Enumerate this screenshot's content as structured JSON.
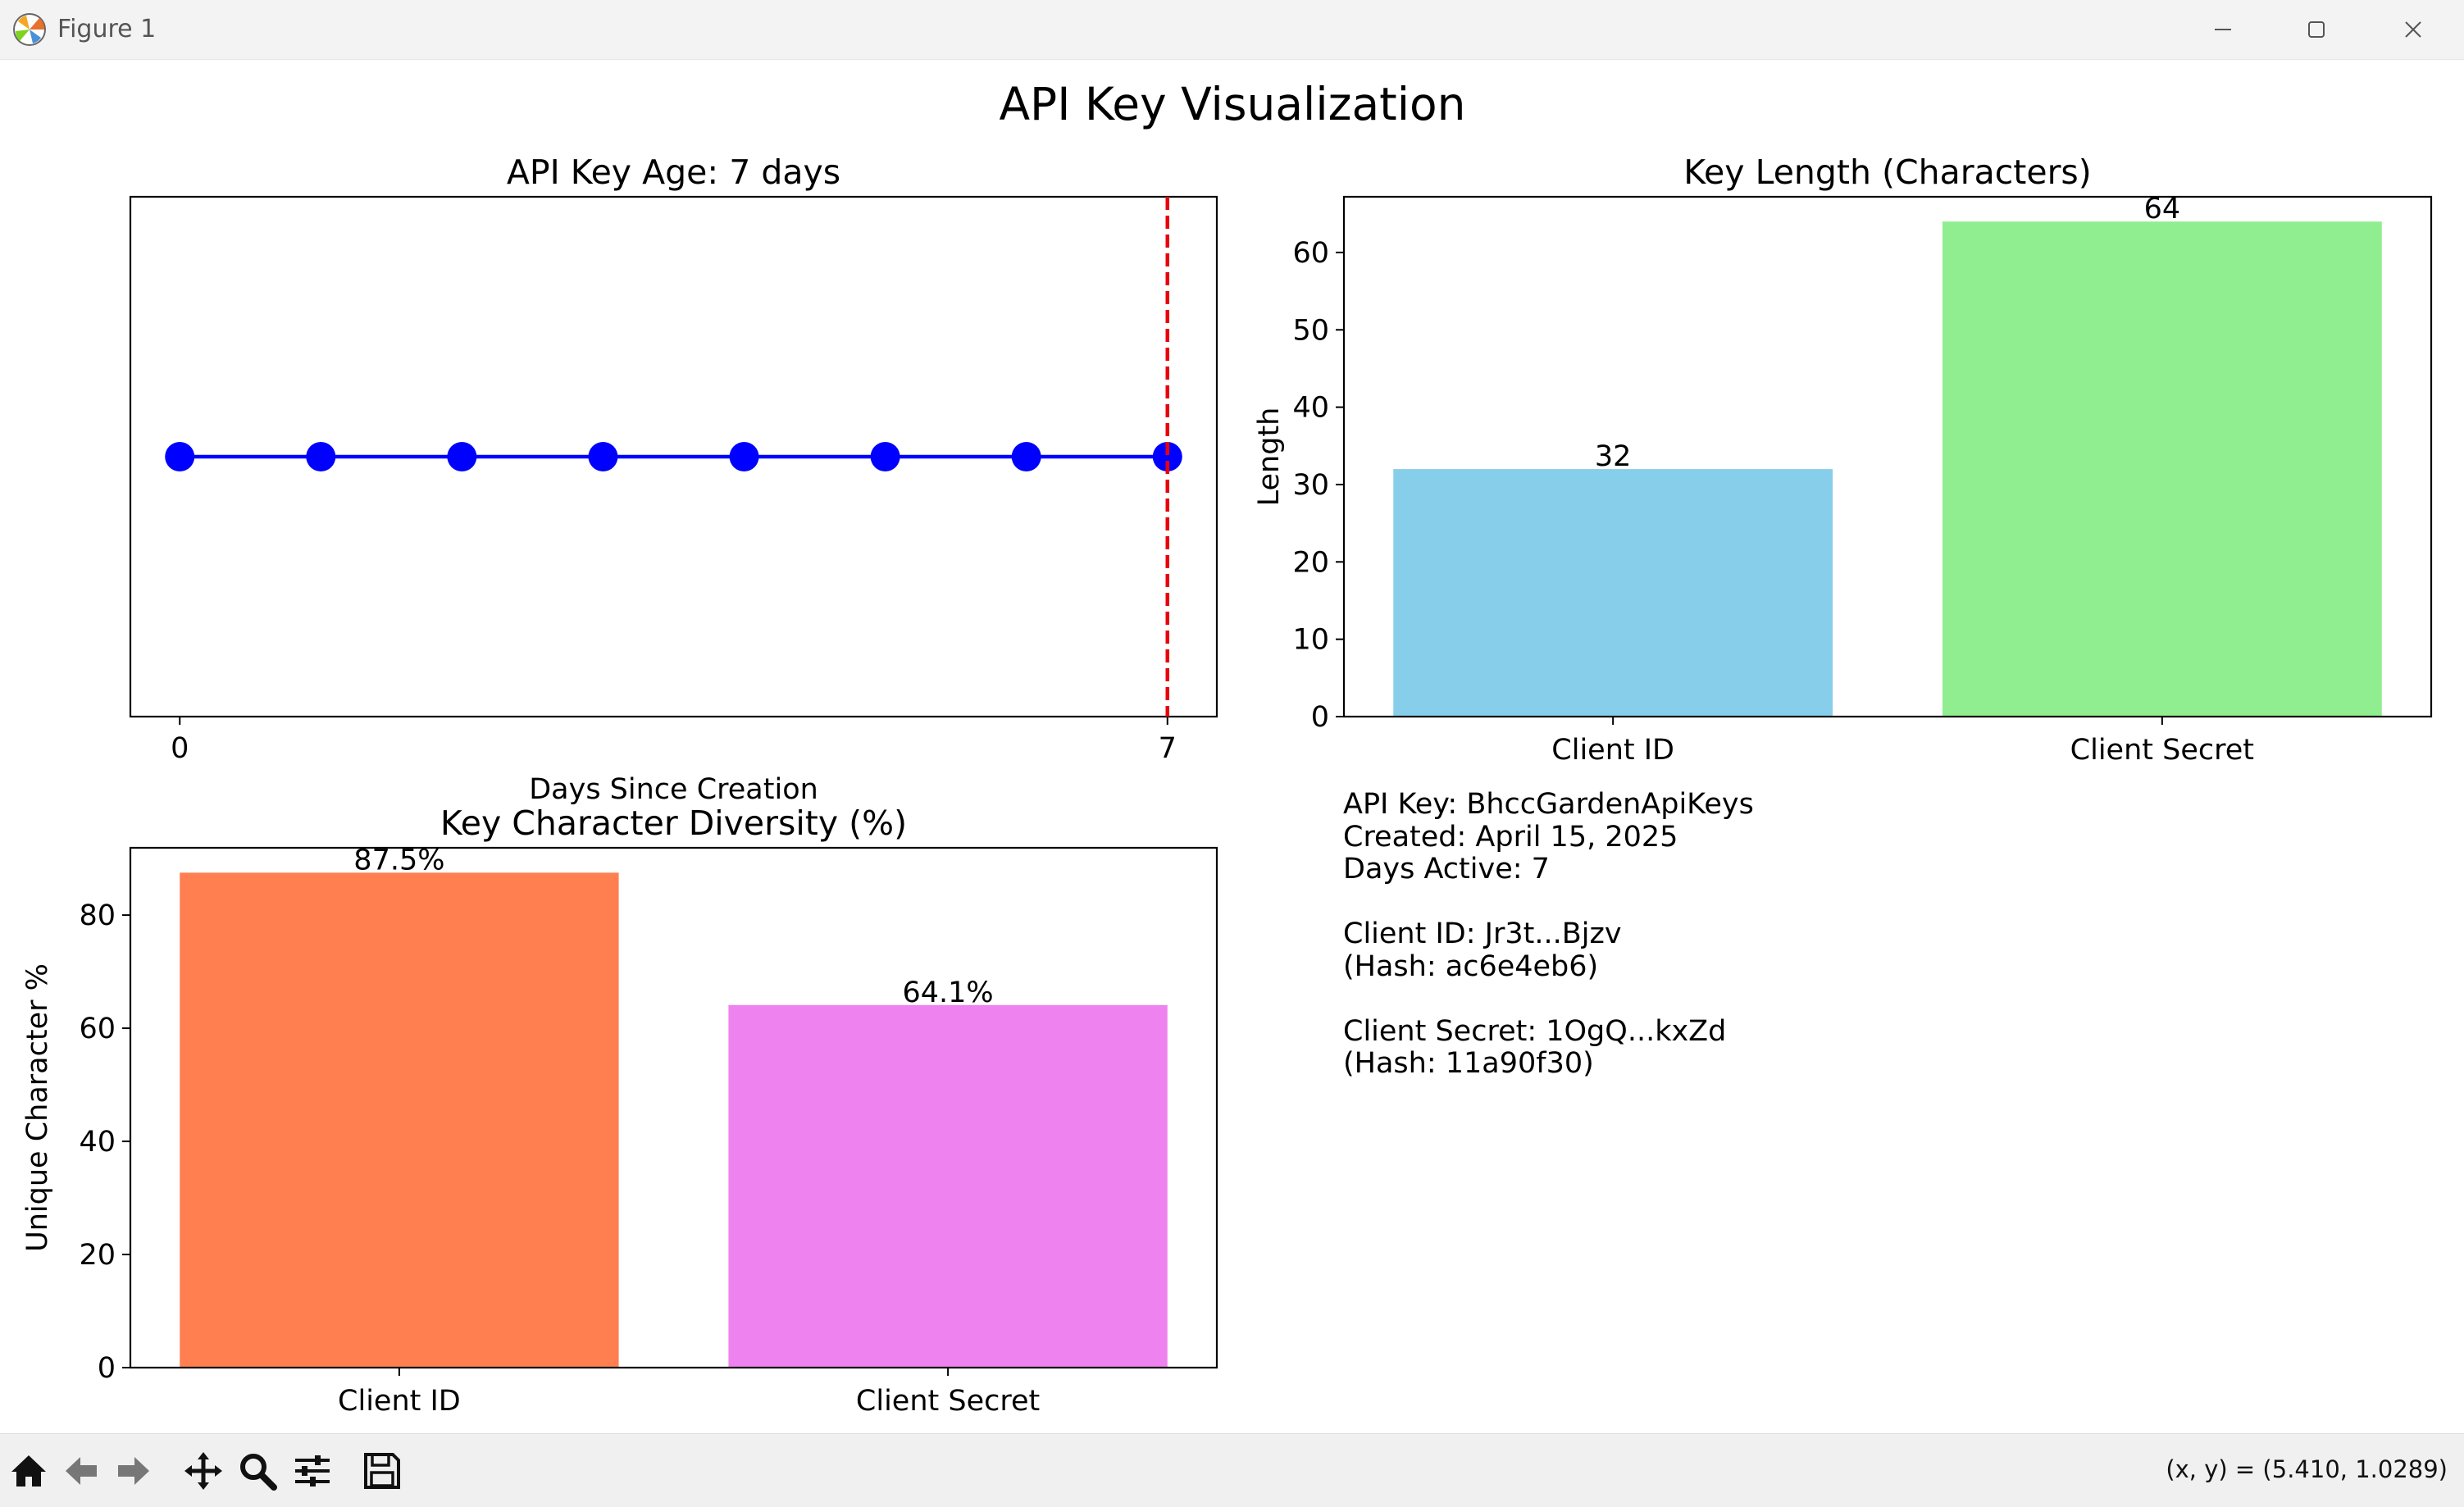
{
  "window": {
    "title": "Figure 1",
    "controls": [
      "minimize-icon",
      "maximize-icon",
      "close-icon"
    ]
  },
  "figure": {
    "suptitle": "API Key Visualization"
  },
  "chart_data": [
    {
      "type": "line",
      "title": "API Key Age: 7 days",
      "xlabel": "Days Since Creation",
      "ylabel": "",
      "x": [
        0,
        1,
        2,
        3,
        4,
        5,
        6,
        7
      ],
      "y": [
        1,
        1,
        1,
        1,
        1,
        1,
        1,
        1
      ],
      "xticks": [
        "0",
        "7"
      ],
      "xlim": [
        -0.35,
        7.35
      ],
      "ylim": [
        0,
        2
      ],
      "show_yticks": false,
      "marker": "circle",
      "line_color": "#0000ff",
      "vline": {
        "x": 7,
        "color": "#e8000b",
        "style": "dashed"
      },
      "grid": false
    },
    {
      "type": "bar",
      "title": "Key Length (Characters)",
      "xlabel": "",
      "ylabel": "Length",
      "categories": [
        "Client ID",
        "Client Secret"
      ],
      "values": [
        32,
        64
      ],
      "value_labels": [
        "32",
        "64"
      ],
      "colors": [
        "#87ceeb",
        "#90ee90"
      ],
      "ylim": [
        0,
        67.2
      ],
      "yticks": [
        0,
        10,
        20,
        30,
        40,
        50,
        60
      ],
      "grid": false
    },
    {
      "type": "bar",
      "title": "Key Character Diversity (%)",
      "xlabel": "",
      "ylabel": "Unique Character %",
      "categories": [
        "Client ID",
        "Client Secret"
      ],
      "values": [
        87.5,
        64.1
      ],
      "value_labels": [
        "87.5%",
        "64.1%"
      ],
      "colors": [
        "#ff7f50",
        "#ee82ee"
      ],
      "ylim": [
        0,
        91.9
      ],
      "yticks": [
        0,
        20,
        40,
        60,
        80
      ],
      "grid": false
    }
  ],
  "info_text": {
    "lines": [
      "API Key: BhccGardenApiKeys",
      "Created: April 15, 2025",
      "Days Active: 7",
      "",
      "Client ID: Jr3t...Bjzv",
      "(Hash: ac6e4eb6)",
      "",
      "Client Secret: 1OgQ...kxZd",
      "(Hash: 11a90f30)"
    ]
  },
  "toolbar": {
    "buttons": [
      {
        "name": "home-button",
        "icon": "home-icon"
      },
      {
        "name": "back-button",
        "icon": "arrow-left-icon"
      },
      {
        "name": "forward-button",
        "icon": "arrow-right-icon"
      },
      {
        "name": "pan-button",
        "icon": "move-icon"
      },
      {
        "name": "zoom-button",
        "icon": "magnifier-icon"
      },
      {
        "name": "configure-subplots-button",
        "icon": "sliders-icon"
      },
      {
        "name": "save-button",
        "icon": "floppy-icon"
      }
    ],
    "coords": "(x, y) = (5.410, 1.0289)"
  }
}
